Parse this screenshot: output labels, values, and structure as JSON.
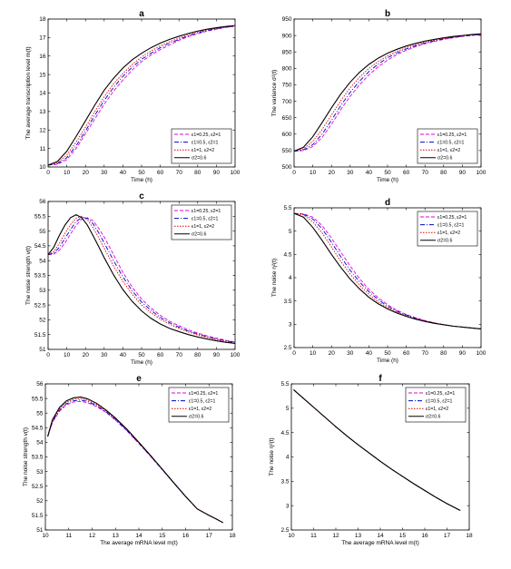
{
  "figure": {
    "background": "#ffffff"
  },
  "legend_entries": [
    {
      "label": "ε1=0.25, ε2=1",
      "color": "#e000e0",
      "dash": "4,2"
    },
    {
      "label": "ε1=0.5, ε2=1",
      "color": "#0000cc",
      "dash": "5,2,1,2"
    },
    {
      "label": "ε1=1, ε2=2",
      "color": "#e00000",
      "dash": "1.5,1.5"
    },
    {
      "label": "σ2=0.6",
      "color": "#000000",
      "dash": ""
    }
  ],
  "chart_data": [
    {
      "id": "a",
      "panel_label": "a",
      "type": "line",
      "xlabel": "Time (h)",
      "ylabel": "The average transcription level m(t)",
      "xlim": [
        0,
        100
      ],
      "ylim": [
        10,
        18
      ],
      "xticks": [
        0,
        10,
        20,
        30,
        40,
        50,
        60,
        70,
        80,
        90,
        100
      ],
      "yticks": [
        10,
        11,
        12,
        13,
        14,
        15,
        16,
        17,
        18
      ],
      "legend_position": "lower-right",
      "x": [
        0,
        5,
        10,
        15,
        20,
        25,
        30,
        35,
        40,
        45,
        50,
        55,
        60,
        65,
        70,
        75,
        80,
        85,
        90,
        95,
        100
      ],
      "series": [
        {
          "name": "ε1=0.25, ε2=1",
          "values": [
            10.1,
            10.15,
            10.4,
            11.0,
            11.8,
            12.6,
            13.4,
            14.1,
            14.7,
            15.25,
            15.7,
            16.05,
            16.35,
            16.6,
            16.85,
            17.05,
            17.2,
            17.35,
            17.45,
            17.55,
            17.6
          ]
        },
        {
          "name": "ε1=0.5, ε2=1",
          "values": [
            10.1,
            10.18,
            10.5,
            11.15,
            11.95,
            12.8,
            13.6,
            14.3,
            14.9,
            15.4,
            15.82,
            16.15,
            16.45,
            16.7,
            16.9,
            17.1,
            17.25,
            17.38,
            17.48,
            17.56,
            17.62
          ]
        },
        {
          "name": "ε1=1, ε2=2",
          "values": [
            10.1,
            10.22,
            10.65,
            11.35,
            12.15,
            13.0,
            13.8,
            14.5,
            15.05,
            15.55,
            15.95,
            16.27,
            16.55,
            16.78,
            16.97,
            17.15,
            17.3,
            17.42,
            17.5,
            17.58,
            17.63
          ]
        },
        {
          "name": "σ2=0.6",
          "values": [
            10.1,
            10.3,
            10.85,
            11.65,
            12.5,
            13.35,
            14.15,
            14.8,
            15.35,
            15.8,
            16.15,
            16.45,
            16.7,
            16.9,
            17.07,
            17.22,
            17.35,
            17.45,
            17.53,
            17.6,
            17.65
          ]
        }
      ]
    },
    {
      "id": "b",
      "panel_label": "b",
      "type": "line",
      "xlabel": "Time (h)",
      "ylabel": "The variance σ²(t)",
      "xlim": [
        0,
        100
      ],
      "ylim": [
        500,
        950
      ],
      "xticks": [
        0,
        10,
        20,
        30,
        40,
        50,
        60,
        70,
        80,
        90,
        100
      ],
      "yticks": [
        500,
        550,
        600,
        650,
        700,
        750,
        800,
        850,
        900,
        950
      ],
      "legend_position": "lower-right",
      "x": [
        0,
        5,
        10,
        15,
        20,
        25,
        30,
        35,
        40,
        45,
        50,
        55,
        60,
        65,
        70,
        75,
        80,
        85,
        90,
        95,
        100
      ],
      "series": [
        {
          "name": "ε1=0.25, ε2=1",
          "values": [
            548,
            550,
            562,
            590,
            630,
            675,
            715,
            750,
            780,
            805,
            825,
            842,
            855,
            866,
            875,
            882,
            888,
            893,
            897,
            900,
            902
          ]
        },
        {
          "name": "ε1=0.5, ε2=1",
          "values": [
            548,
            552,
            568,
            600,
            642,
            687,
            727,
            761,
            790,
            813,
            832,
            847,
            859,
            869,
            877,
            884,
            890,
            894,
            898,
            901,
            903
          ]
        },
        {
          "name": "ε1=1, ε2=2",
          "values": [
            548,
            555,
            578,
            614,
            658,
            702,
            741,
            773,
            800,
            821,
            838,
            852,
            863,
            872,
            880,
            886,
            891,
            895,
            899,
            902,
            904
          ]
        },
        {
          "name": "σ2=0.6",
          "values": [
            548,
            560,
            592,
            635,
            680,
            722,
            758,
            788,
            812,
            831,
            846,
            858,
            868,
            876,
            883,
            888,
            893,
            897,
            900,
            903,
            905
          ]
        }
      ]
    },
    {
      "id": "c",
      "panel_label": "c",
      "type": "line",
      "xlabel": "Time (h)",
      "ylabel": "The noise strength v(t)",
      "xlim": [
        0,
        100
      ],
      "ylim": [
        51,
        56
      ],
      "xticks": [
        0,
        10,
        20,
        30,
        40,
        50,
        60,
        70,
        80,
        90,
        100
      ],
      "yticks": [
        51,
        51.5,
        52,
        52.5,
        53,
        53.5,
        54,
        54.5,
        55,
        55.5,
        56
      ],
      "legend_position": "top-right",
      "x": [
        0,
        3,
        6,
        9,
        12,
        15,
        18,
        21,
        24,
        27,
        30,
        35,
        40,
        45,
        50,
        55,
        60,
        65,
        70,
        75,
        80,
        85,
        90,
        95,
        100
      ],
      "series": [
        {
          "name": "ε1=0.25, ε2=1",
          "values": [
            54.2,
            54.22,
            54.35,
            54.6,
            54.9,
            55.2,
            55.4,
            55.45,
            55.35,
            55.1,
            54.8,
            54.2,
            53.6,
            53.1,
            52.7,
            52.4,
            52.15,
            51.95,
            51.8,
            51.66,
            51.55,
            51.46,
            51.38,
            51.31,
            51.25
          ]
        },
        {
          "name": "ε1=0.5, ε2=1",
          "values": [
            54.2,
            54.25,
            54.45,
            54.75,
            55.05,
            55.32,
            55.46,
            55.43,
            55.25,
            54.95,
            54.6,
            54.0,
            53.45,
            52.98,
            52.6,
            52.32,
            52.08,
            51.9,
            51.75,
            51.62,
            51.52,
            51.43,
            51.35,
            51.29,
            51.23
          ]
        },
        {
          "name": "ε1=1, ε2=2",
          "values": [
            54.2,
            54.3,
            54.58,
            54.92,
            55.22,
            55.44,
            55.5,
            55.38,
            55.12,
            54.78,
            54.42,
            53.82,
            53.3,
            52.86,
            52.5,
            52.24,
            52.02,
            51.85,
            51.71,
            51.59,
            51.49,
            51.41,
            51.33,
            51.27,
            51.21
          ]
        },
        {
          "name": "σ2=0.6",
          "values": [
            54.2,
            54.45,
            54.85,
            55.2,
            55.45,
            55.55,
            55.45,
            55.2,
            54.85,
            54.48,
            54.1,
            53.52,
            53.02,
            52.62,
            52.3,
            52.05,
            51.86,
            51.71,
            51.6,
            51.5,
            51.42,
            51.35,
            51.29,
            51.24,
            51.2
          ]
        }
      ]
    },
    {
      "id": "d",
      "panel_label": "d",
      "type": "line",
      "xlabel": "Time (h)",
      "ylabel": "The noise η²(t)",
      "xlim": [
        0,
        100
      ],
      "ylim": [
        2.5,
        5.5
      ],
      "xticks": [
        0,
        10,
        20,
        30,
        40,
        50,
        60,
        70,
        80,
        90,
        100
      ],
      "yticks": [
        2.5,
        3,
        3.5,
        4,
        4.5,
        5,
        5.5
      ],
      "legend_position": "top-right",
      "x": [
        0,
        5,
        10,
        15,
        20,
        25,
        30,
        35,
        40,
        45,
        50,
        55,
        60,
        65,
        70,
        75,
        80,
        85,
        90,
        95,
        100
      ],
      "series": [
        {
          "name": "ε1=0.25, ε2=1",
          "values": [
            5.38,
            5.37,
            5.3,
            5.12,
            4.85,
            4.55,
            4.25,
            3.98,
            3.75,
            3.57,
            3.42,
            3.3,
            3.21,
            3.14,
            3.08,
            3.03,
            2.99,
            2.96,
            2.94,
            2.92,
            2.9
          ]
        },
        {
          "name": "ε1=0.5, ε2=1",
          "values": [
            5.38,
            5.36,
            5.26,
            5.05,
            4.76,
            4.45,
            4.16,
            3.91,
            3.7,
            3.53,
            3.39,
            3.28,
            3.2,
            3.13,
            3.07,
            3.03,
            2.99,
            2.96,
            2.94,
            2.92,
            2.9
          ]
        },
        {
          "name": "ε1=1, ε2=2",
          "values": [
            5.38,
            5.35,
            5.2,
            4.96,
            4.66,
            4.35,
            4.08,
            3.84,
            3.64,
            3.48,
            3.36,
            3.26,
            3.18,
            3.12,
            3.07,
            3.03,
            2.99,
            2.96,
            2.94,
            2.92,
            2.9
          ]
        },
        {
          "name": "σ2=0.6",
          "values": [
            5.38,
            5.3,
            5.08,
            4.8,
            4.5,
            4.22,
            3.97,
            3.76,
            3.58,
            3.44,
            3.33,
            3.24,
            3.17,
            3.11,
            3.06,
            3.02,
            2.99,
            2.96,
            2.94,
            2.92,
            2.9
          ]
        }
      ]
    },
    {
      "id": "e",
      "panel_label": "e",
      "type": "line",
      "xlabel": "The average mRNA level m(t)",
      "ylabel": "The noise strength v(t)",
      "xlim": [
        10,
        18
      ],
      "ylim": [
        51,
        56
      ],
      "xticks": [
        10,
        11,
        12,
        13,
        14,
        15,
        16,
        17,
        18
      ],
      "yticks": [
        51,
        51.5,
        52,
        52.5,
        53,
        53.5,
        54,
        54.5,
        55,
        55.5,
        56
      ],
      "legend_position": "top-right",
      "x": [
        10.1,
        10.3,
        10.6,
        10.9,
        11.2,
        11.5,
        11.8,
        12.2,
        12.6,
        13.0,
        13.5,
        14.0,
        14.5,
        15.0,
        15.5,
        16.0,
        16.5,
        17.0,
        17.3,
        17.6
      ],
      "series": [
        {
          "name": "ε1=0.25, ε2=1",
          "values": [
            54.2,
            54.68,
            55.06,
            55.28,
            55.38,
            55.4,
            55.36,
            55.22,
            55.02,
            54.76,
            54.38,
            53.96,
            53.52,
            53.06,
            52.6,
            52.14,
            51.72,
            51.5,
            51.38,
            51.25
          ]
        },
        {
          "name": "ε1=0.5, ε2=1",
          "values": [
            54.2,
            54.7,
            55.1,
            55.32,
            55.42,
            55.45,
            55.4,
            55.25,
            55.04,
            54.78,
            54.4,
            53.97,
            53.53,
            53.07,
            52.6,
            52.14,
            51.72,
            51.5,
            51.38,
            51.25
          ]
        },
        {
          "name": "ε1=1, ε2=2",
          "values": [
            54.2,
            54.73,
            55.14,
            55.37,
            55.47,
            55.5,
            55.44,
            55.29,
            55.07,
            54.8,
            54.42,
            53.99,
            53.54,
            53.08,
            52.61,
            52.15,
            51.72,
            51.5,
            51.38,
            51.25
          ]
        },
        {
          "name": "σ2=0.6",
          "values": [
            54.2,
            54.77,
            55.19,
            55.42,
            55.52,
            55.55,
            55.49,
            55.33,
            55.1,
            54.83,
            54.44,
            54.0,
            53.55,
            53.08,
            52.61,
            52.15,
            51.72,
            51.5,
            51.38,
            51.25
          ]
        }
      ]
    },
    {
      "id": "f",
      "panel_label": "f",
      "type": "line",
      "xlabel": "The average mRNA level m(t)",
      "ylabel": "The noise η²(t)",
      "xlim": [
        10,
        18
      ],
      "ylim": [
        2.5,
        5.5
      ],
      "xticks": [
        10,
        11,
        12,
        13,
        14,
        15,
        16,
        17,
        18
      ],
      "yticks": [
        2.5,
        3,
        3.5,
        4,
        4.5,
        5,
        5.5
      ],
      "legend_position": "top-right",
      "x": [
        10.1,
        10.5,
        11.0,
        11.5,
        12.0,
        12.5,
        13.0,
        13.5,
        14.0,
        14.5,
        15.0,
        15.5,
        16.0,
        16.5,
        17.0,
        17.6
      ],
      "series": [
        {
          "name": "ε1=0.25, ε2=1",
          "values": [
            5.38,
            5.22,
            5.02,
            4.82,
            4.62,
            4.43,
            4.25,
            4.08,
            3.91,
            3.75,
            3.6,
            3.45,
            3.31,
            3.17,
            3.04,
            2.9
          ]
        },
        {
          "name": "ε1=0.5, ε2=1",
          "values": [
            5.38,
            5.22,
            5.02,
            4.82,
            4.62,
            4.43,
            4.25,
            4.08,
            3.91,
            3.75,
            3.6,
            3.45,
            3.31,
            3.17,
            3.04,
            2.9
          ]
        },
        {
          "name": "ε1=1, ε2=2",
          "values": [
            5.38,
            5.22,
            5.02,
            4.82,
            4.62,
            4.43,
            4.25,
            4.08,
            3.91,
            3.75,
            3.6,
            3.45,
            3.31,
            3.17,
            3.04,
            2.9
          ]
        },
        {
          "name": "σ2=0.6",
          "values": [
            5.38,
            5.22,
            5.02,
            4.82,
            4.62,
            4.43,
            4.25,
            4.08,
            3.91,
            3.75,
            3.6,
            3.45,
            3.31,
            3.17,
            3.04,
            2.9
          ]
        }
      ]
    }
  ]
}
